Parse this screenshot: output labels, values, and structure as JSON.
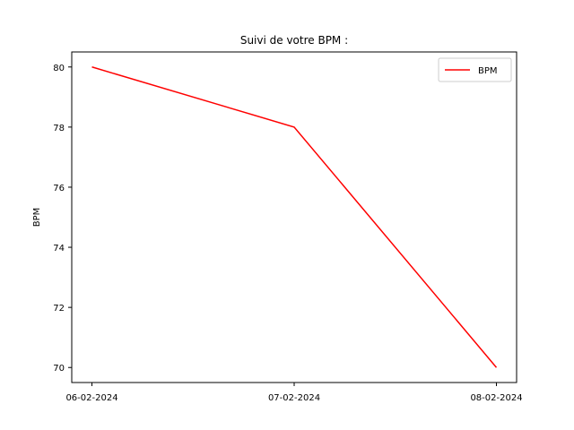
{
  "chart_data": {
    "type": "line",
    "title": "Suivi de votre BPM :",
    "xlabel": "",
    "ylabel": "BPM",
    "categories": [
      "06-02-2024",
      "07-02-2024",
      "08-02-2024"
    ],
    "series": [
      {
        "name": "BPM",
        "values": [
          80,
          78,
          70
        ],
        "color": "#ff0000"
      }
    ],
    "ylim": [
      69.5,
      80.5
    ],
    "yticks": [
      70,
      72,
      74,
      76,
      78,
      80
    ],
    "grid": false,
    "legend": "top-right"
  }
}
